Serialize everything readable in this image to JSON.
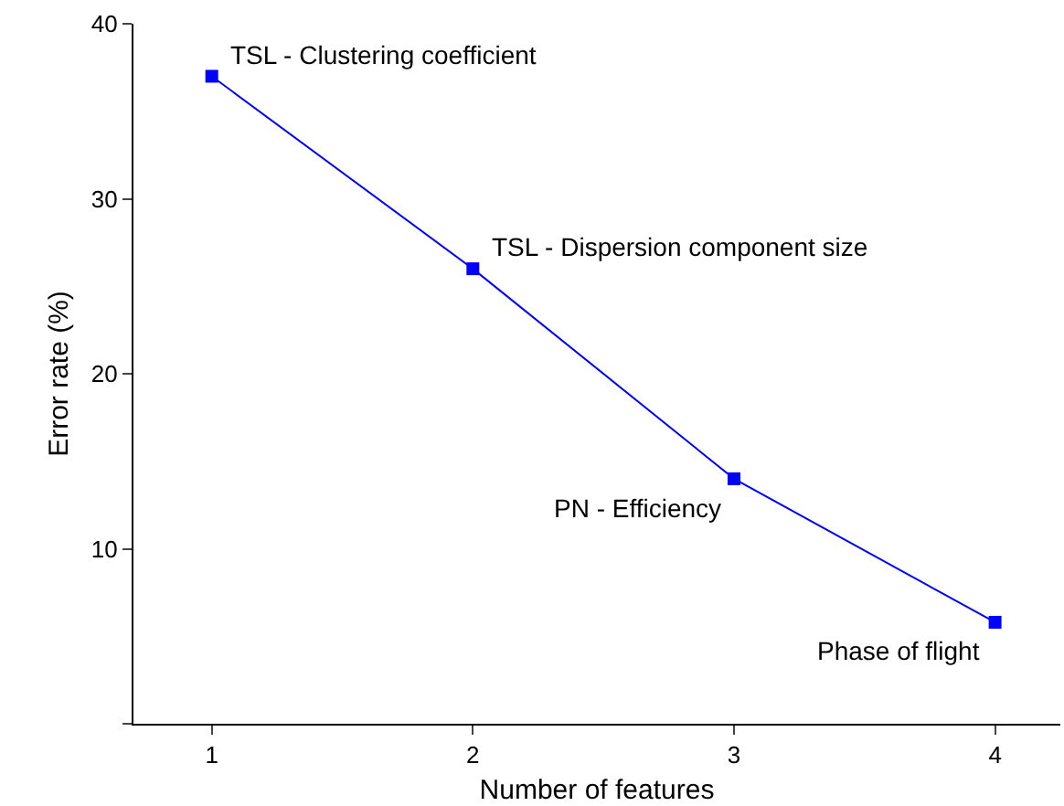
{
  "chart_data": {
    "type": "line",
    "xlabel": "Number of features",
    "ylabel": "Error rate (%)",
    "x": [
      1,
      2,
      3,
      4
    ],
    "series": [
      {
        "color": "#0000ff",
        "values": [
          37,
          26,
          14,
          5.8
        ]
      }
    ],
    "xlim": [
      0.7,
      4.25
    ],
    "xticks": [
      1,
      2,
      3,
      4
    ],
    "ylim": [
      0,
      40
    ],
    "yticks": [
      {
        "value": 0,
        "label": null
      },
      10,
      20,
      30,
      40
    ],
    "marker": "square",
    "line_style": "solid",
    "grid": false,
    "annotations": [
      {
        "text": "TSL - Clustering coefficient",
        "x": 1,
        "y": 37
      },
      {
        "text": "TSL - Dispersion component size",
        "x": 2,
        "y": 26
      },
      {
        "text": "PN - Efficiency",
        "x": 3,
        "y": 14
      },
      {
        "text": "Phase of flight",
        "x": 4,
        "y": 5.8
      }
    ]
  }
}
